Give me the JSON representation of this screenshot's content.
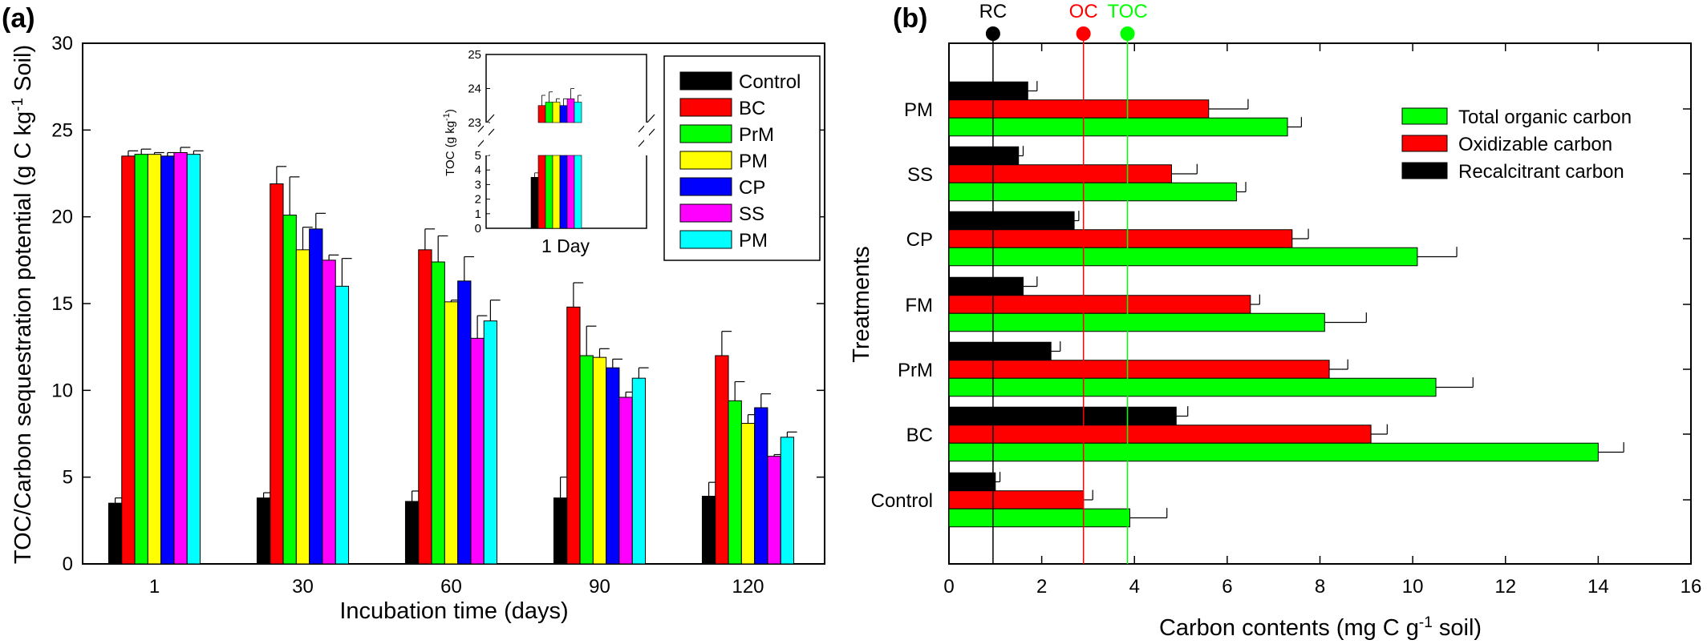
{
  "colors": {
    "control": "#000000",
    "bc": "#ff0000",
    "prm": "#00ff00",
    "pm": "#ffff00",
    "cp": "#0000ff",
    "ss": "#ff00ff",
    "pm2": "#00ffff",
    "total": "#00ff00",
    "oxid": "#ff0000",
    "recal": "#000000"
  },
  "chart_data": [
    {
      "panel": "(a)",
      "type": "bar",
      "xlabel": "Incubation time (days)",
      "ylabel": "TOC/Carbon sequestration potential (g C kg⁻¹ Soil)",
      "ylabel_parts": [
        "TOC/Carbon sequestration potential (g C kg",
        "-1",
        " Soil)"
      ],
      "ylim": [
        0,
        30
      ],
      "yticks": [
        "0",
        "5",
        "10",
        "15",
        "20",
        "25",
        "30"
      ],
      "categories": [
        "1",
        "30",
        "60",
        "90",
        "120"
      ],
      "legend_position": "top-right",
      "series": [
        {
          "name": "Control",
          "color": "#000000",
          "values": [
            3.5,
            3.8,
            3.6,
            3.8,
            3.9
          ],
          "errors": [
            0.3,
            0.3,
            0.6,
            1.2,
            0.8
          ]
        },
        {
          "name": "BC",
          "color": "#ff0000",
          "values": [
            23.5,
            21.9,
            18.1,
            14.8,
            12.0
          ],
          "errors": [
            0.3,
            1.0,
            1.2,
            1.4,
            1.4
          ]
        },
        {
          "name": "PrM",
          "color": "#00ff00",
          "values": [
            23.6,
            20.1,
            17.4,
            12.0,
            9.4
          ],
          "errors": [
            0.3,
            2.2,
            1.5,
            1.7,
            1.1
          ]
        },
        {
          "name": "PM",
          "color": "#ffff00",
          "values": [
            23.6,
            18.1,
            15.1,
            11.9,
            8.1
          ],
          "errors": [
            0.1,
            1.3,
            0.1,
            0.5,
            0.5
          ]
        },
        {
          "name": "CP",
          "color": "#0000ff",
          "values": [
            23.5,
            19.3,
            16.3,
            11.3,
            9.0
          ],
          "errors": [
            0.2,
            0.9,
            1.4,
            0.5,
            0.8
          ]
        },
        {
          "name": "SS",
          "color": "#ff00ff",
          "values": [
            23.7,
            17.5,
            13.0,
            9.6,
            6.2
          ],
          "errors": [
            0.3,
            0.3,
            1.3,
            0.3,
            0.1
          ]
        },
        {
          "name": "PM",
          "color": "#00ffff",
          "values": [
            23.6,
            16.0,
            14.0,
            10.7,
            7.3
          ],
          "errors": [
            0.2,
            1.6,
            1.2,
            0.6,
            0.3
          ]
        }
      ],
      "inset": {
        "xlabel": "1 Day",
        "ylabel": "TOC (g kg⁻¹)",
        "ylabel_parts": [
          "TOC (g kg",
          "-1",
          ")"
        ],
        "lower_ticks": [
          "0",
          "1",
          "2",
          "3",
          "4",
          "5"
        ],
        "upper_ticks": [
          "23",
          "24",
          "25"
        ],
        "lower_range": [
          0,
          5
        ],
        "upper_range": [
          23,
          25
        ],
        "values": [
          3.5,
          23.5,
          23.6,
          23.6,
          23.5,
          23.7,
          23.6
        ],
        "errors": [
          0.3,
          0.3,
          0.3,
          0.1,
          0.2,
          0.3,
          0.2
        ]
      }
    },
    {
      "panel": "(b)",
      "type": "bar",
      "orientation": "horizontal",
      "xlabel": "Carbon contents (mg C g⁻¹ soil)",
      "xlabel_parts": [
        "Carbon contents (mg C g",
        "-1",
        " soil)"
      ],
      "ylabel": "Treatments",
      "xlim": [
        0,
        16
      ],
      "xticks": [
        "0",
        "2",
        "4",
        "6",
        "8",
        "10",
        "12",
        "14",
        "16"
      ],
      "categories": [
        "Control",
        "BC",
        "PrM",
        "FM",
        "CP",
        "SS",
        "PM"
      ],
      "legend_position": "top-right",
      "series": [
        {
          "name": "Recalcitrant carbon",
          "color": "#000000",
          "values": [
            1.0,
            4.9,
            2.2,
            1.6,
            2.7,
            1.5,
            1.7
          ],
          "errors": [
            0.1,
            0.25,
            0.2,
            0.3,
            0.1,
            0.1,
            0.2
          ]
        },
        {
          "name": "Oxidizable carbon",
          "color": "#ff0000",
          "values": [
            2.9,
            9.1,
            8.2,
            6.5,
            7.4,
            4.8,
            5.6
          ],
          "errors": [
            0.2,
            0.35,
            0.4,
            0.2,
            0.35,
            0.55,
            0.85
          ]
        },
        {
          "name": "Total organic carbon",
          "color": "#00ff00",
          "values": [
            3.9,
            14.0,
            10.5,
            8.1,
            10.1,
            6.2,
            7.3
          ],
          "errors": [
            0.8,
            0.55,
            0.8,
            0.9,
            0.85,
            0.2,
            0.3
          ]
        }
      ],
      "legend_order": [
        "Total organic carbon",
        "Oxidizable carbon",
        "Recalcitrant carbon"
      ],
      "reference_lines": [
        {
          "label": "RC",
          "value": 0.95,
          "color": "#000000"
        },
        {
          "label": "OC",
          "value": 2.9,
          "color": "#ff0000"
        },
        {
          "label": "TOC",
          "value": 3.85,
          "color": "#00ff00"
        }
      ]
    }
  ]
}
